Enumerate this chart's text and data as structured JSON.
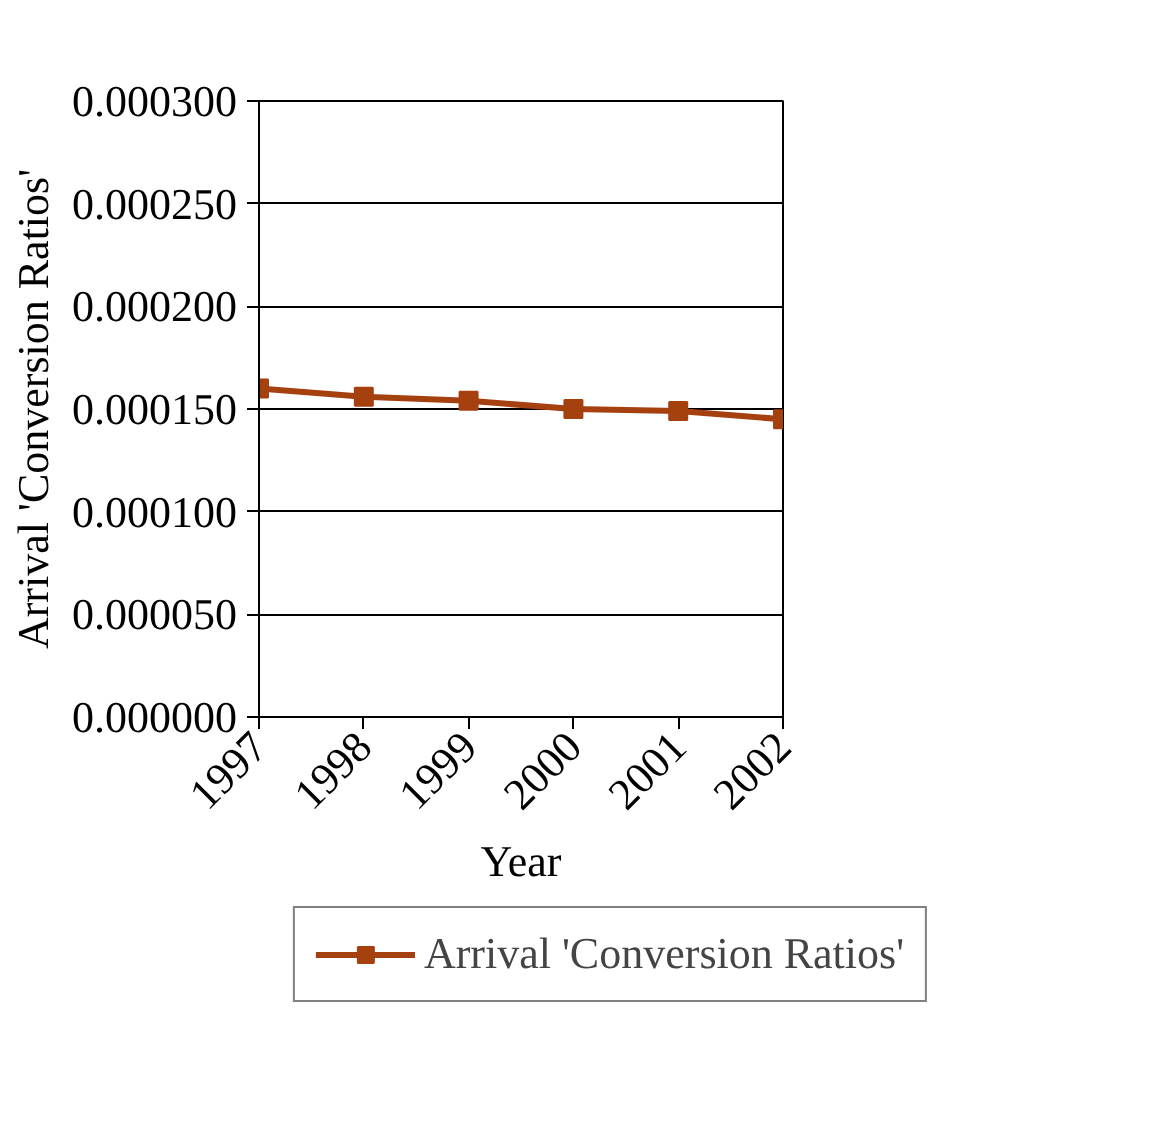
{
  "chart_data": {
    "type": "line",
    "xlabel": "Year",
    "ylabel": "Arrival 'Conversion Ratios'",
    "x": [
      1997,
      1998,
      1999,
      2000,
      2001,
      2002
    ],
    "series": [
      {
        "name": "Arrival 'Conversion Ratios'",
        "color": "#a5400f",
        "values": [
          0.00016,
          0.000156,
          0.000154,
          0.00015,
          0.000149,
          0.000145
        ]
      }
    ],
    "xlim": [
      1997,
      2002
    ],
    "xticks": [
      1997,
      1998,
      1999,
      2000,
      2001,
      2002
    ],
    "ylim": [
      0,
      0.0003
    ],
    "yticks": [
      {
        "value": 0,
        "label": "0.000000"
      },
      {
        "value": 5e-05,
        "label": "0.000050"
      },
      {
        "value": 0.0001,
        "label": "0.000100"
      },
      {
        "value": 0.00015,
        "label": "0.000150"
      },
      {
        "value": 0.0002,
        "label": "0.000200"
      },
      {
        "value": 0.00025,
        "label": "0.000250"
      },
      {
        "value": 0.0003,
        "label": "0.000300"
      }
    ],
    "grid": "y",
    "legend": "bottom",
    "marker": "square",
    "line_style": "solid"
  }
}
